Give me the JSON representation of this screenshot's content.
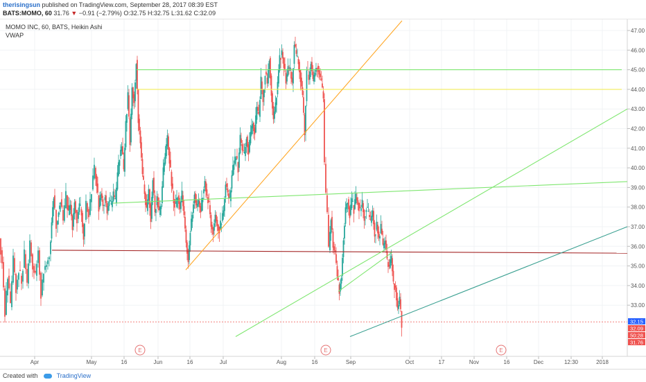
{
  "header": {
    "author": "therisingsun",
    "published_text": "published on TradingView.com, September 28, 2017 08:39 EST",
    "symbol": "BATS:MOMO, 60",
    "last": "31.76",
    "change": "−0.91 (−2.79%)",
    "open": "O:32.75",
    "high": "H:32.75",
    "low": "L:31.62",
    "close": "C:32.09"
  },
  "legend": {
    "study_title": "MOMO INC, 60, BATS, Heikin Ashi",
    "indicator": "VWAP"
  },
  "footer": {
    "created_with": "Created with",
    "brand": "TradingView"
  },
  "colors": {
    "up_candle": "#26a69a",
    "down_candle": "#ef5350",
    "green_line": "#7ee66f",
    "yellow_line": "#f2ec5a",
    "orange_line": "#ffa726",
    "maroon_line": "#a52727",
    "teal_line": "#3aa091",
    "last_price_bg": "#2962ff",
    "price_label_red": "#ef5350"
  },
  "chart_data": {
    "type": "candlestick",
    "yticks": [
      "47.00",
      "46.00",
      "45.00",
      "44.00",
      "43.00",
      "42.00",
      "41.00",
      "40.00",
      "39.00",
      "38.00",
      "37.00",
      "36.00",
      "35.00",
      "34.00",
      "33.00"
    ],
    "xticks": [
      "Apr",
      "May",
      "16",
      "Jun",
      "16",
      "Jul",
      "Aug",
      "16",
      "Sep",
      "Oct",
      "17",
      "Nov",
      "16",
      "Dec",
      "12:30",
      "2018"
    ],
    "ylim": [
      31.6,
      47.2
    ],
    "price_labels": [
      {
        "value": 32.15,
        "text": "32.15",
        "style": "blue"
      },
      {
        "value": 32.09,
        "text": "32.09",
        "style": "red"
      },
      {
        "value": 31.87,
        "text": "50:28",
        "style": "red"
      },
      {
        "value": 31.76,
        "text": "31.76",
        "style": "red"
      }
    ],
    "event_markers": [
      "E",
      "E",
      "E"
    ],
    "price_path": [
      [
        0,
        36.4
      ],
      [
        4,
        35.2
      ],
      [
        8,
        32.5
      ],
      [
        12,
        34.5
      ],
      [
        16,
        32.9
      ],
      [
        20,
        35.4
      ],
      [
        24,
        33.8
      ],
      [
        28,
        34.8
      ],
      [
        32,
        34.2
      ],
      [
        36,
        35.6
      ],
      [
        40,
        34.1
      ],
      [
        44,
        36.2
      ],
      [
        48,
        35.0
      ],
      [
        52,
        34.5
      ],
      [
        56,
        35.8
      ],
      [
        60,
        33.5
      ],
      [
        64,
        34.8
      ],
      [
        68,
        35.1
      ],
      [
        72,
        35.6
      ],
      [
        75,
        37.2
      ],
      [
        78,
        38.6
      ],
      [
        82,
        37.1
      ],
      [
        85,
        37.9
      ],
      [
        88,
        38.4
      ],
      [
        92,
        37.3
      ],
      [
        96,
        38.6
      ],
      [
        99,
        37.6
      ],
      [
        102,
        38.1
      ],
      [
        105,
        37.0
      ],
      [
        108,
        38.3
      ],
      [
        112,
        37.4
      ],
      [
        115,
        38.1
      ],
      [
        118,
        37.7
      ],
      [
        121,
        36.5
      ],
      [
        125,
        38.2
      ],
      [
        129,
        37.6
      ],
      [
        133,
        38.9
      ],
      [
        137,
        40.0
      ],
      [
        140,
        39.2
      ],
      [
        143,
        38.0
      ],
      [
        146,
        38.7
      ],
      [
        149,
        38.1
      ],
      [
        152,
        38.6
      ],
      [
        155,
        37.8
      ],
      [
        158,
        38.3
      ],
      [
        161,
        38.0
      ],
      [
        164,
        38.6
      ],
      [
        167,
        38.2
      ],
      [
        170,
        39.6
      ],
      [
        173,
        40.6
      ],
      [
        176,
        41.1
      ],
      [
        179,
        39.8
      ],
      [
        182,
        42.3
      ],
      [
        185,
        43.7
      ],
      [
        188,
        41.3
      ],
      [
        191,
        44.1
      ],
      [
        194,
        43.4
      ],
      [
        197,
        45.5
      ],
      [
        200,
        42.5
      ],
      [
        203,
        41.3
      ],
      [
        206,
        39.6
      ],
      [
        209,
        38.7
      ],
      [
        212,
        37.8
      ],
      [
        215,
        38.9
      ],
      [
        218,
        37.4
      ],
      [
        221,
        39.5
      ],
      [
        224,
        37.7
      ],
      [
        227,
        38.5
      ],
      [
        230,
        37.6
      ],
      [
        233,
        38.2
      ],
      [
        236,
        39.8
      ],
      [
        239,
        40.6
      ],
      [
        242,
        41.6
      ],
      [
        245,
        40.4
      ],
      [
        248,
        39.2
      ],
      [
        251,
        38.4
      ],
      [
        254,
        38.0
      ],
      [
        257,
        38.6
      ],
      [
        260,
        37.9
      ],
      [
        263,
        38.6
      ],
      [
        266,
        37.5
      ],
      [
        269,
        36.2
      ],
      [
        272,
        35.3
      ],
      [
        275,
        36.8
      ],
      [
        278,
        37.7
      ],
      [
        281,
        38.7
      ],
      [
        284,
        38.0
      ],
      [
        287,
        38.3
      ],
      [
        290,
        37.8
      ],
      [
        293,
        38.7
      ],
      [
        296,
        39.3
      ],
      [
        299,
        38.5
      ],
      [
        302,
        38.1
      ],
      [
        305,
        37.1
      ],
      [
        308,
        36.8
      ],
      [
        311,
        37.6
      ],
      [
        314,
        37.1
      ],
      [
        317,
        36.9
      ],
      [
        320,
        37.3
      ],
      [
        323,
        37.8
      ],
      [
        326,
        39.2
      ],
      [
        329,
        38.7
      ],
      [
        332,
        38.3
      ],
      [
        335,
        39.6
      ],
      [
        338,
        40.2
      ],
      [
        341,
        40.6
      ],
      [
        344,
        40.0
      ],
      [
        347,
        41.5
      ],
      [
        350,
        40.9
      ],
      [
        353,
        40.6
      ],
      [
        356,
        41.6
      ],
      [
        359,
        40.8
      ],
      [
        362,
        41.7
      ],
      [
        365,
        42.3
      ],
      [
        368,
        41.8
      ],
      [
        371,
        43.1
      ],
      [
        374,
        42.6
      ],
      [
        377,
        44.4
      ],
      [
        380,
        43.6
      ],
      [
        383,
        44.9
      ],
      [
        386,
        44.3
      ],
      [
        389,
        45.6
      ],
      [
        392,
        43.8
      ],
      [
        395,
        42.5
      ],
      [
        398,
        43.2
      ],
      [
        401,
        44.3
      ],
      [
        404,
        45.6
      ],
      [
        407,
        45.9
      ],
      [
        410,
        45.3
      ],
      [
        413,
        44.4
      ],
      [
        416,
        45.0
      ],
      [
        419,
        44.9
      ],
      [
        422,
        44.3
      ],
      [
        425,
        46.3
      ],
      [
        428,
        45.7
      ],
      [
        431,
        45.4
      ],
      [
        434,
        44.6
      ],
      [
        437,
        43.6
      ],
      [
        440,
        41.8
      ],
      [
        443,
        45.0
      ],
      [
        446,
        44.5
      ],
      [
        449,
        45.4
      ],
      [
        452,
        44.4
      ],
      [
        455,
        44.9
      ],
      [
        458,
        45.2
      ],
      [
        461,
        44.8
      ],
      [
        464,
        44.3
      ],
      [
        467,
        43.5
      ],
      [
        469,
        40.2
      ],
      [
        471,
        38.6
      ],
      [
        473,
        37.6
      ],
      [
        475,
        35.8
      ],
      [
        478,
        37.5
      ],
      [
        481,
        36.0
      ],
      [
        484,
        35.6
      ],
      [
        487,
        34.4
      ],
      [
        490,
        33.7
      ],
      [
        493,
        34.5
      ],
      [
        496,
        36.4
      ],
      [
        499,
        37.9
      ],
      [
        502,
        38.4
      ],
      [
        505,
        37.6
      ],
      [
        508,
        38.3
      ],
      [
        511,
        37.9
      ],
      [
        514,
        38.5
      ],
      [
        517,
        38.2
      ],
      [
        520,
        37.8
      ],
      [
        523,
        38.2
      ],
      [
        526,
        37.5
      ],
      [
        529,
        38.0
      ],
      [
        532,
        37.6
      ],
      [
        535,
        37.2
      ],
      [
        538,
        37.8
      ],
      [
        541,
        36.6
      ],
      [
        544,
        37.1
      ],
      [
        547,
        36.4
      ],
      [
        550,
        36.9
      ],
      [
        553,
        35.9
      ],
      [
        556,
        36.3
      ],
      [
        559,
        35.2
      ],
      [
        562,
        34.9
      ],
      [
        565,
        35.4
      ],
      [
        568,
        34.1
      ],
      [
        571,
        33.9
      ],
      [
        574,
        32.8
      ],
      [
        577,
        33.3
      ],
      [
        580,
        32.1
      ]
    ],
    "lines": [
      {
        "name": "",
        "color": "green",
        "x1": 197,
        "y1": 45.0,
        "x2": 897,
        "y2": 45.0
      },
      {
        "name": "",
        "color": "yellow",
        "x1": 197,
        "y1": 44.0,
        "x2": 897,
        "y2": 44.0
      },
      {
        "name": "",
        "color": "green",
        "x1": 163,
        "y1": 38.2,
        "x2": 905,
        "y2": 39.3
      },
      {
        "name": "",
        "color": "maroon",
        "x1": 75,
        "y1": 35.8,
        "x2": 905,
        "y2": 35.65
      },
      {
        "name": "",
        "color": "orange",
        "x1": 268,
        "y1": 34.8,
        "x2": 580,
        "y2": 47.5
      },
      {
        "name": "",
        "color": "green",
        "x1": 340,
        "y1": 31.4,
        "x2": 905,
        "y2": 43.0
      },
      {
        "name": "",
        "color": "green",
        "x1": 488,
        "y1": 33.7,
        "x2": 566,
        "y2": 35.7
      },
      {
        "name": "",
        "color": "teal",
        "x1": 505,
        "y1": 31.4,
        "x2": 905,
        "y2": 37.0
      }
    ]
  }
}
